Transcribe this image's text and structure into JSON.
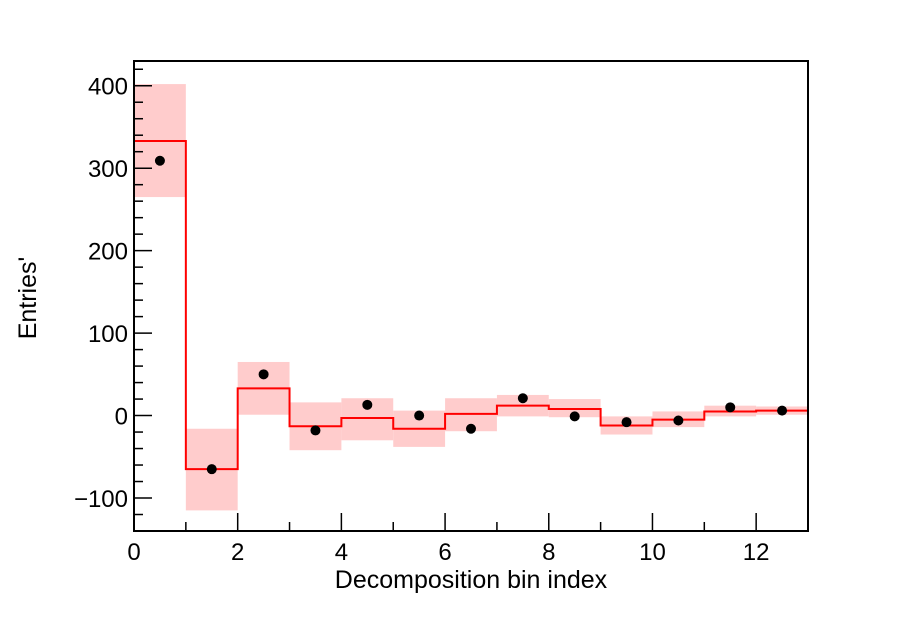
{
  "chart_data": {
    "type": "step",
    "xlabel": "Decomposition bin index",
    "ylabel": "Entries'",
    "xlim": [
      0,
      13
    ],
    "ylim": [
      -140,
      430
    ],
    "x_ticks": [
      0,
      2,
      4,
      6,
      8,
      10,
      12
    ],
    "y_ticks": [
      -100,
      0,
      100,
      200,
      300,
      400
    ],
    "x_tick_labels": [
      "0",
      "2",
      "4",
      "6",
      "8",
      "10",
      "12"
    ],
    "y_tick_labels": [
      "−100",
      "0",
      "100",
      "200",
      "300",
      "400"
    ],
    "bin_edges": [
      0,
      1,
      2,
      3,
      4,
      5,
      6,
      7,
      8,
      9,
      10,
      11,
      12,
      13
    ],
    "series": [
      {
        "kind": "step",
        "color": "#ff0000",
        "values": [
          333,
          -65,
          33,
          -13,
          -3,
          -16,
          2,
          12,
          8,
          -12,
          -5,
          5,
          6
        ]
      },
      {
        "kind": "band",
        "color": "#ffcccc",
        "low": [
          265,
          -115,
          1,
          -42,
          -30,
          -38,
          -19,
          -1,
          -2,
          -23,
          -14,
          -1,
          1
        ],
        "high": [
          402,
          -16,
          65,
          16,
          21,
          6,
          21,
          25,
          20,
          -1,
          5,
          12,
          11
        ]
      },
      {
        "kind": "points",
        "color": "#000000",
        "x": [
          0.5,
          1.5,
          2.5,
          3.5,
          4.5,
          5.5,
          6.5,
          7.5,
          8.5,
          9.5,
          10.5,
          11.5,
          12.5
        ],
        "values": [
          309,
          -65,
          50,
          -18,
          13,
          0,
          -16,
          21,
          -1,
          -8,
          -6,
          10,
          6
        ]
      }
    ]
  }
}
